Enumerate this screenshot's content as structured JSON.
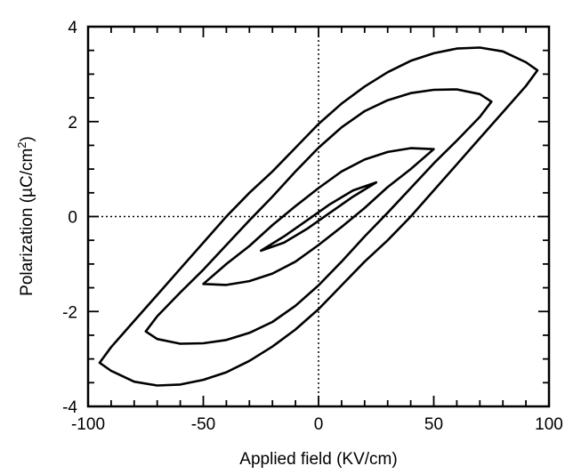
{
  "chart_data": {
    "type": "line",
    "title": "",
    "xlabel": "Applied field (KV/cm)",
    "ylabel_parts": {
      "main": "Polarization (",
      "mu": "µ",
      "unit": "C/cm",
      "sup": "2",
      "close": ")"
    },
    "xlim": [
      -100,
      100
    ],
    "ylim": [
      -4,
      4
    ],
    "x_ticks": [
      -100,
      -50,
      0,
      50,
      100
    ],
    "x_tick_labels": [
      "-100",
      "-50",
      "0",
      "50",
      "100"
    ],
    "y_ticks": [
      -4,
      -2,
      0,
      2,
      4
    ],
    "y_tick_labels": [
      "-4",
      "-2",
      "0",
      "2",
      "4"
    ],
    "x_minor_step": 10,
    "y_minor_step": 0.5,
    "reference_lines": {
      "x0": true,
      "y0": true,
      "style": "dotted"
    },
    "grid": false,
    "series": [
      {
        "points": [
          [
            -95,
            -3.08
          ],
          [
            -90,
            -2.75
          ],
          [
            -80,
            -2.2
          ],
          [
            -70,
            -1.65
          ],
          [
            -60,
            -1.1
          ],
          [
            -50,
            -0.55
          ],
          [
            -40,
            0.0
          ],
          [
            -30,
            0.5
          ],
          [
            -20,
            0.95
          ],
          [
            -10,
            1.45
          ],
          [
            0,
            1.95
          ],
          [
            10,
            2.38
          ],
          [
            20,
            2.74
          ],
          [
            30,
            3.04
          ],
          [
            40,
            3.28
          ],
          [
            50,
            3.44
          ],
          [
            60,
            3.54
          ],
          [
            70,
            3.56
          ],
          [
            80,
            3.48
          ],
          [
            90,
            3.25
          ],
          [
            95,
            3.08
          ],
          [
            90,
            2.75
          ],
          [
            80,
            2.2
          ],
          [
            70,
            1.65
          ],
          [
            60,
            1.1
          ],
          [
            50,
            0.55
          ],
          [
            40,
            0.0
          ],
          [
            30,
            -0.5
          ],
          [
            20,
            -0.95
          ],
          [
            10,
            -1.45
          ],
          [
            0,
            -1.95
          ],
          [
            -10,
            -2.38
          ],
          [
            -20,
            -2.74
          ],
          [
            -30,
            -3.04
          ],
          [
            -40,
            -3.28
          ],
          [
            -50,
            -3.44
          ],
          [
            -60,
            -3.54
          ],
          [
            -70,
            -3.56
          ],
          [
            -80,
            -3.48
          ],
          [
            -90,
            -3.25
          ],
          [
            -95,
            -3.08
          ]
        ],
        "closed": true
      },
      {
        "points": [
          [
            -75,
            -2.42
          ],
          [
            -70,
            -2.1
          ],
          [
            -60,
            -1.6
          ],
          [
            -50,
            -1.12
          ],
          [
            -40,
            -0.6
          ],
          [
            -30,
            -0.08
          ],
          [
            -20,
            0.42
          ],
          [
            -10,
            0.95
          ],
          [
            0,
            1.45
          ],
          [
            10,
            1.88
          ],
          [
            20,
            2.22
          ],
          [
            30,
            2.45
          ],
          [
            40,
            2.6
          ],
          [
            50,
            2.67
          ],
          [
            60,
            2.68
          ],
          [
            70,
            2.58
          ],
          [
            75,
            2.42
          ],
          [
            70,
            2.1
          ],
          [
            60,
            1.6
          ],
          [
            50,
            1.12
          ],
          [
            40,
            0.6
          ],
          [
            30,
            0.08
          ],
          [
            20,
            -0.42
          ],
          [
            10,
            -0.95
          ],
          [
            0,
            -1.45
          ],
          [
            -10,
            -1.88
          ],
          [
            -20,
            -2.22
          ],
          [
            -30,
            -2.45
          ],
          [
            -40,
            -2.6
          ],
          [
            -50,
            -2.67
          ],
          [
            -60,
            -2.68
          ],
          [
            -70,
            -2.58
          ],
          [
            -75,
            -2.42
          ]
        ],
        "closed": true
      },
      {
        "points": [
          [
            -50,
            -1.42
          ],
          [
            -40,
            -1.0
          ],
          [
            -30,
            -0.62
          ],
          [
            -20,
            -0.18
          ],
          [
            -10,
            0.22
          ],
          [
            0,
            0.6
          ],
          [
            10,
            0.95
          ],
          [
            20,
            1.2
          ],
          [
            30,
            1.36
          ],
          [
            40,
            1.44
          ],
          [
            50,
            1.42
          ],
          [
            40,
            1.0
          ],
          [
            30,
            0.62
          ],
          [
            20,
            0.18
          ],
          [
            10,
            -0.22
          ],
          [
            0,
            -0.6
          ],
          [
            -10,
            -0.95
          ],
          [
            -20,
            -1.2
          ],
          [
            -30,
            -1.36
          ],
          [
            -40,
            -1.44
          ],
          [
            -50,
            -1.42
          ]
        ],
        "closed": true
      },
      {
        "points": [
          [
            -25,
            -0.72
          ],
          [
            -15,
            -0.42
          ],
          [
            -5,
            -0.08
          ],
          [
            5,
            0.26
          ],
          [
            15,
            0.55
          ],
          [
            25,
            0.72
          ],
          [
            15,
            0.42
          ],
          [
            5,
            0.08
          ],
          [
            -5,
            -0.26
          ],
          [
            -15,
            -0.55
          ],
          [
            -25,
            -0.72
          ]
        ],
        "closed": true
      }
    ]
  }
}
